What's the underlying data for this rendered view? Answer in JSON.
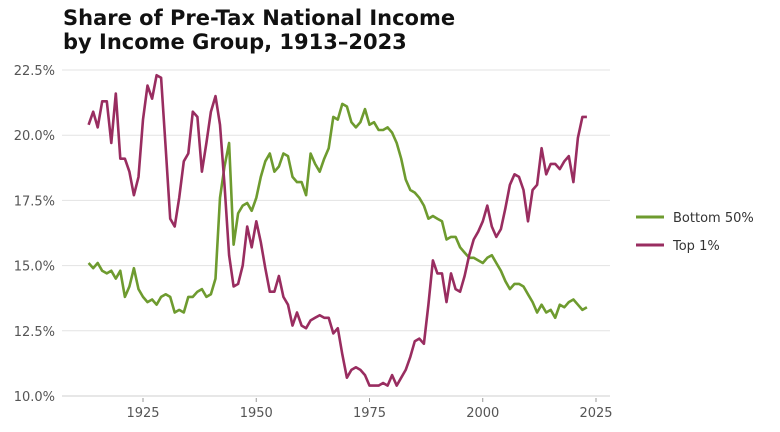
{
  "chart_data": {
    "type": "line",
    "title": [
      "Share of Pre-Tax National Income",
      "by Income Group, 1913–2023"
    ],
    "xlabel": "",
    "ylabel": "",
    "xlim": [
      1908,
      2030
    ],
    "ylim": [
      10.0,
      22.5
    ],
    "x_ticks": [
      1925,
      1950,
      1975,
      2000,
      2025
    ],
    "y_ticks": [
      10.0,
      12.5,
      15.0,
      17.5,
      20.0,
      22.5
    ],
    "y_tick_labels": [
      "10.0%",
      "12.5%",
      "15.0%",
      "17.5%",
      "20.0%",
      "22.5%"
    ],
    "grid": "horizontal",
    "legend_position": "right",
    "x_start": 1913,
    "series": [
      {
        "name": "Bottom 50%",
        "color": "#6e9b2f",
        "values": [
          15.1,
          14.9,
          15.1,
          14.8,
          14.7,
          14.8,
          14.5,
          14.8,
          13.8,
          14.2,
          14.9,
          14.1,
          13.8,
          13.6,
          13.7,
          13.5,
          13.8,
          13.9,
          13.8,
          13.2,
          13.3,
          13.2,
          13.8,
          13.8,
          14.0,
          14.1,
          13.8,
          13.9,
          14.5,
          17.6,
          18.8,
          19.7,
          15.8,
          17.0,
          17.3,
          17.4,
          17.1,
          17.6,
          18.4,
          19.0,
          19.3,
          18.6,
          18.8,
          19.3,
          19.2,
          18.4,
          18.2,
          18.2,
          17.7,
          19.3,
          18.9,
          18.6,
          19.1,
          19.5,
          20.7,
          20.6,
          21.2,
          21.1,
          20.5,
          20.3,
          20.5,
          21.0,
          20.4,
          20.5,
          20.2,
          20.2,
          20.3,
          20.1,
          19.7,
          19.1,
          18.3,
          17.9,
          17.8,
          17.6,
          17.3,
          16.8,
          16.9,
          16.8,
          16.7,
          16.0,
          16.1,
          16.1,
          15.7,
          15.5,
          15.3,
          15.3,
          15.2,
          15.1,
          15.3,
          15.4,
          15.1,
          14.8,
          14.4,
          14.1,
          14.3,
          14.3,
          14.2,
          13.9,
          13.6,
          13.2,
          13.5,
          13.2,
          13.3,
          13.0,
          13.5,
          13.4,
          13.6,
          13.7,
          13.5,
          13.3,
          13.4
        ]
      },
      {
        "name": "Top 1%",
        "color": "#992d60",
        "values": [
          20.4,
          20.9,
          20.3,
          21.3,
          21.3,
          19.7,
          21.6,
          19.1,
          19.1,
          18.6,
          17.7,
          18.4,
          20.6,
          21.9,
          21.4,
          22.3,
          22.2,
          19.5,
          16.8,
          16.5,
          17.6,
          19.0,
          19.3,
          20.9,
          20.7,
          18.6,
          19.7,
          20.9,
          21.5,
          20.4,
          18.1,
          15.4,
          14.2,
          14.3,
          15.0,
          16.5,
          15.7,
          16.7,
          15.9,
          14.9,
          14.0,
          14.0,
          14.6,
          13.8,
          13.5,
          12.7,
          13.2,
          12.7,
          12.6,
          12.9,
          13.0,
          13.1,
          13.0,
          13.0,
          12.4,
          12.6,
          11.6,
          10.7,
          11.0,
          11.1,
          11.0,
          10.8,
          10.4,
          10.4,
          10.4,
          10.5,
          10.4,
          10.8,
          10.4,
          10.7,
          11.0,
          11.5,
          12.1,
          12.2,
          12.0,
          13.5,
          15.2,
          14.7,
          14.7,
          13.6,
          14.7,
          14.1,
          14.0,
          14.6,
          15.4,
          16.0,
          16.3,
          16.7,
          17.3,
          16.5,
          16.1,
          16.4,
          17.2,
          18.1,
          18.5,
          18.4,
          17.9,
          16.7,
          17.9,
          18.1,
          19.5,
          18.5,
          18.9,
          18.9,
          18.7,
          19.0,
          19.2,
          18.2,
          19.9,
          20.7,
          20.7
        ]
      }
    ]
  }
}
